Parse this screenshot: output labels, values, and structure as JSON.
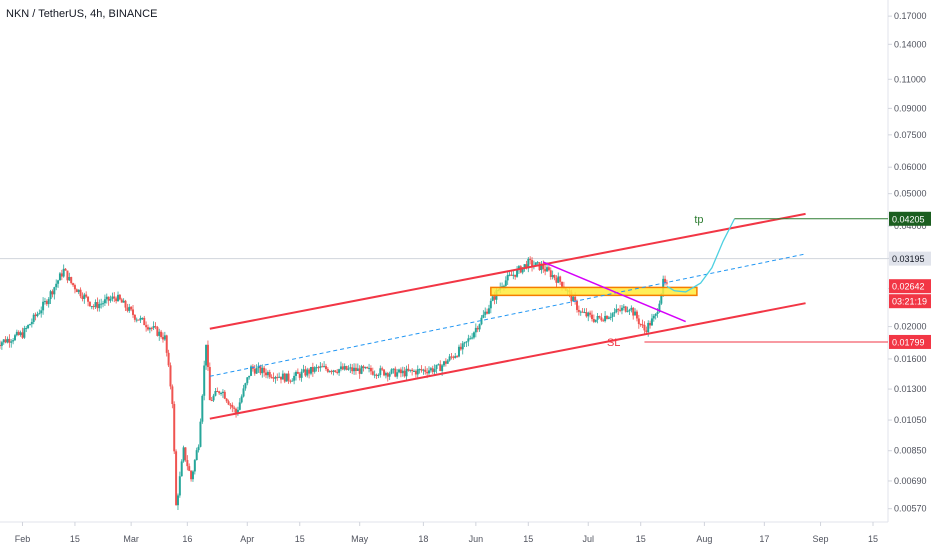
{
  "header": {
    "symbol_title": "NKN / TetherUS, 4h, BINANCE"
  },
  "colors": {
    "up": "#26a69a",
    "down": "#ef5350",
    "channel": "#f23645",
    "midline": "#2196f3",
    "trendline": "#d500f9",
    "zone_fill": "#ffeb3b",
    "zone_border": "#f57c00",
    "projection": "#4dd0e1",
    "tp": "#2e7d32",
    "sl": "#f23645",
    "price_label": "#f23645",
    "tp_label": "#1b5e20",
    "high_label": "#e0e3eb"
  },
  "chart_data": {
    "type": "candlestick",
    "scale": "log",
    "x_ticks": [
      "Feb",
      "15",
      "Mar",
      "16",
      "Apr",
      "15",
      "May",
      "18",
      "Jun",
      "15",
      "Jul",
      "15",
      "Aug",
      "17",
      "Sep",
      "15"
    ],
    "y_ticks": [
      "0.17000",
      "0.14000",
      "0.11000",
      "0.09000",
      "0.07500",
      "0.06000",
      "0.05000",
      "0.04000",
      "0.03200",
      "0.02600",
      "0.02000",
      "0.01600",
      "0.01300",
      "0.01050",
      "0.00850",
      "0.00690",
      "0.00570"
    ],
    "price_labels": {
      "tp": "0.04205",
      "high": "0.03195",
      "last": "0.02642",
      "countdown": "03:21:19",
      "sl": "0.01799"
    },
    "annotations": {
      "tp": "tp",
      "sl": "SL"
    },
    "ylim": [
      0.0052,
      0.19
    ],
    "series": [
      {
        "values": [
          [
            "2020-01-25",
            0.0178
          ],
          [
            "2020-02-01",
            0.019
          ],
          [
            "2020-02-07",
            0.0235
          ],
          [
            "2020-02-12",
            0.0295
          ],
          [
            "2020-02-14",
            0.027
          ],
          [
            "2020-02-20",
            0.023
          ],
          [
            "2020-02-26",
            0.0245
          ],
          [
            "2020-03-02",
            0.0215
          ],
          [
            "2020-03-06",
            0.02
          ],
          [
            "2020-03-10",
            0.0185
          ],
          [
            "2020-03-12",
            0.012
          ],
          [
            "2020-03-13",
            0.0058
          ],
          [
            "2020-03-15",
            0.0085
          ],
          [
            "2020-03-17",
            0.007
          ],
          [
            "2020-03-19",
            0.009
          ],
          [
            "2020-03-21",
            0.018
          ],
          [
            "2020-03-22",
            0.012
          ],
          [
            "2020-03-25",
            0.013
          ],
          [
            "2020-03-29",
            0.011
          ],
          [
            "2020-04-02",
            0.015
          ],
          [
            "2020-04-12",
            0.014
          ],
          [
            "2020-04-20",
            0.015
          ],
          [
            "2020-05-01",
            0.0148
          ],
          [
            "2020-05-12",
            0.0145
          ],
          [
            "2020-05-22",
            0.015
          ],
          [
            "2020-05-29",
            0.0175
          ],
          [
            "2020-06-03",
            0.0215
          ],
          [
            "2020-06-08",
            0.027
          ],
          [
            "2020-06-15",
            0.031
          ],
          [
            "2020-06-19",
            0.03
          ],
          [
            "2020-06-24",
            0.027
          ],
          [
            "2020-06-29",
            0.022
          ],
          [
            "2020-07-03",
            0.021
          ],
          [
            "2020-07-08",
            0.022
          ],
          [
            "2020-07-12",
            0.023
          ],
          [
            "2020-07-16",
            0.0195
          ],
          [
            "2020-07-19",
            0.0215
          ],
          [
            "2020-07-21",
            0.027
          ],
          [
            "2020-07-22",
            0.0264
          ]
        ]
      }
    ],
    "channel_upper": [
      [
        "2020-03-22",
        0.0197
      ],
      [
        "2020-08-28",
        0.0435
      ]
    ],
    "channel_lower": [
      [
        "2020-03-22",
        0.0106
      ],
      [
        "2020-08-28",
        0.0235
      ]
    ],
    "channel_mid": [
      [
        "2020-03-22",
        0.0142
      ],
      [
        "2020-08-28",
        0.033
      ]
    ],
    "trendline": [
      [
        "2020-06-19",
        0.0312
      ],
      [
        "2020-07-27",
        0.0207
      ]
    ],
    "entry_zone": {
      "from": "2020-06-05",
      "to": "2020-07-30",
      "low": 0.0248,
      "high": 0.0262
    },
    "projection": [
      [
        "2020-07-22",
        0.0264
      ],
      [
        "2020-07-24",
        0.0256
      ],
      [
        "2020-07-27",
        0.0254
      ],
      [
        "2020-07-31",
        0.027
      ],
      [
        "2020-08-03",
        0.03
      ],
      [
        "2020-08-06",
        0.036
      ],
      [
        "2020-08-09",
        0.042
      ]
    ]
  }
}
